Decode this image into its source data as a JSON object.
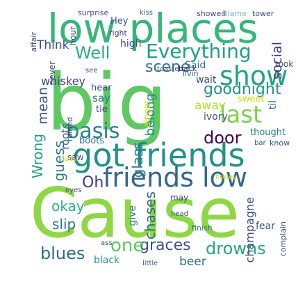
{
  "words": [
    {
      "text": "Cause",
      "color": "#8fd744"
    },
    {
      "text": "big",
      "color": "#5ec962"
    },
    {
      "text": "low places",
      "color": "#35b779"
    },
    {
      "text": "got friends",
      "color": "#21918c"
    },
    {
      "text": "friends low",
      "color": "#31688e"
    },
    {
      "text": "show",
      "color": "#21a585"
    },
    {
      "text": "last",
      "color": "#7ad151"
    },
    {
      "text": "Everything",
      "color": "#1f9e89"
    },
    {
      "text": "goodnight",
      "color": "#21918c"
    },
    {
      "text": "oasis",
      "color": "#26828e"
    },
    {
      "text": "door",
      "color": "#440154"
    },
    {
      "text": "scene",
      "color": "#2c728e"
    },
    {
      "text": "Well",
      "color": "#28ae80"
    },
    {
      "text": "drowns",
      "color": "#22a884"
    },
    {
      "text": "graces",
      "color": "#3b528b"
    },
    {
      "text": "one",
      "color": "#5ec962"
    },
    {
      "text": "blues",
      "color": "#31688e"
    },
    {
      "text": "okay",
      "color": "#2db27d"
    },
    {
      "text": "Oh",
      "color": "#443983"
    },
    {
      "text": "guess",
      "color": "#2a788e"
    },
    {
      "text": "Wrong",
      "color": "#1fa187"
    },
    {
      "text": "slip",
      "color": "#2a788e"
    },
    {
      "text": "whiskey",
      "color": "#414487"
    },
    {
      "text": "Think",
      "color": "#3e4a89"
    },
    {
      "text": "mean",
      "color": "#3b528b"
    },
    {
      "text": "glass",
      "color": "#2a788e"
    },
    {
      "text": "belong",
      "color": "#228c8d"
    },
    {
      "text": "say",
      "color": "#2c728e"
    },
    {
      "text": "away",
      "color": "#b5de2b"
    },
    {
      "text": "social",
      "color": "#46337f"
    },
    {
      "text": "beer",
      "color": "#2c728e"
    },
    {
      "text": "champagne",
      "color": "#3e4a89"
    },
    {
      "text": "chases",
      "color": "#31688e"
    },
    {
      "text": "high",
      "color": "#3e4a89"
    },
    {
      "text": "Hey",
      "color": "#3b528b"
    },
    {
      "text": "wait",
      "color": "#3e4a89"
    },
    {
      "text": "Said",
      "color": "#2a788e"
    },
    {
      "text": "sweet",
      "color": "#c8e020"
    },
    {
      "text": "ivory",
      "color": "#3b528b"
    },
    {
      "text": "thought",
      "color": "#26828e"
    },
    {
      "text": "til",
      "color": "#31688e"
    },
    {
      "text": "took",
      "color": "#3e4a89"
    },
    {
      "text": "hear",
      "color": "#3b528b"
    },
    {
      "text": "tie",
      "color": "#3e4a89"
    },
    {
      "text": "roots",
      "color": "#31688e"
    },
    {
      "text": "boots",
      "color": "#2c728e"
    },
    {
      "text": "saw",
      "color": "#3b528b"
    },
    {
      "text": "may",
      "color": "#414487"
    },
    {
      "text": "give",
      "color": "#2a788e"
    },
    {
      "text": "fear",
      "color": "#3b528b"
    },
    {
      "text": "black",
      "color": "#21918c"
    },
    {
      "text": "alright",
      "color": "#d8e219"
    },
    {
      "text": "surprise",
      "color": "#414487"
    },
    {
      "text": "kiss",
      "color": "#3b528b"
    },
    {
      "text": "showed",
      "color": "#3e4a89"
    },
    {
      "text": "Blame",
      "color": "#7fbad6"
    },
    {
      "text": "tower",
      "color": "#3b528b"
    },
    {
      "text": "affair",
      "color": "#3e4a89"
    },
    {
      "text": "hour",
      "color": "#3b528b"
    },
    {
      "text": "right",
      "color": "#46337f"
    },
    {
      "text": "never",
      "color": "#3e4a89"
    },
    {
      "text": "see",
      "color": "#3b528b"
    },
    {
      "text": "toasted",
      "color": "#3b528b"
    },
    {
      "text": "back",
      "color": "#482576"
    },
    {
      "text": "livin",
      "color": "#2c728e"
    },
    {
      "text": "ruined",
      "color": "#414487"
    },
    {
      "text": "know",
      "color": "#3b528b"
    },
    {
      "text": "bar",
      "color": "#3b528b"
    },
    {
      "text": "lady",
      "color": "#d8e219"
    },
    {
      "text": "honey",
      "color": "#c2df23"
    },
    {
      "text": "eyes",
      "color": "#3b528b"
    },
    {
      "text": "head",
      "color": "#3b528b"
    },
    {
      "text": "finish",
      "color": "#2c728e"
    },
    {
      "text": "complain",
      "color": "#3b528b"
    },
    {
      "text": "ass",
      "color": "#3b528b"
    },
    {
      "text": "little",
      "color": "#3b528b"
    }
  ]
}
